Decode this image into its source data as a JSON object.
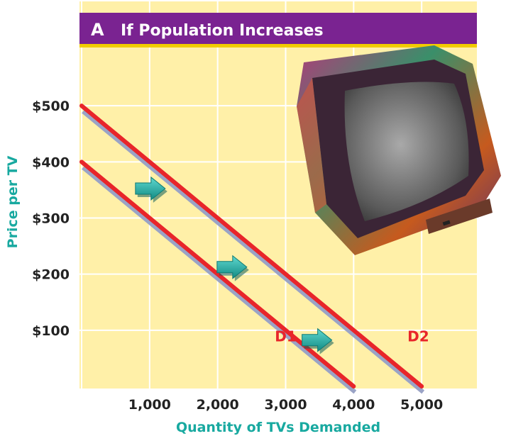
{
  "chart_data": {
    "type": "line",
    "panel_letter": "A",
    "title": "If Population Increases",
    "xlabel": "Quantity of TVs Demanded",
    "ylabel": "Price per TV",
    "xlim": [
      0,
      6000
    ],
    "ylim": [
      0,
      600
    ],
    "x_ticks": [
      {
        "value": 1000,
        "label": "1,000"
      },
      {
        "value": 2000,
        "label": "2,000"
      },
      {
        "value": 3000,
        "label": "3,000"
      },
      {
        "value": 4000,
        "label": "4,000"
      },
      {
        "value": 5000,
        "label": "5,000"
      }
    ],
    "y_ticks": [
      {
        "value": 100,
        "label": "$100"
      },
      {
        "value": 200,
        "label": "$200"
      },
      {
        "value": 300,
        "label": "$300"
      },
      {
        "value": 400,
        "label": "$400"
      },
      {
        "value": 500,
        "label": "$500"
      }
    ],
    "grid": true,
    "series": [
      {
        "name": "D1",
        "points": [
          [
            0,
            400
          ],
          [
            4000,
            0
          ]
        ],
        "label_at": [
          3000,
          80
        ]
      },
      {
        "name": "D2",
        "points": [
          [
            0,
            500
          ],
          [
            5000,
            0
          ]
        ],
        "label_at": [
          4950,
          80
        ]
      }
    ],
    "shift_arrows": [
      {
        "at": [
          1000,
          355
        ]
      },
      {
        "at": [
          2200,
          215
        ]
      },
      {
        "at": [
          3450,
          85
        ]
      }
    ],
    "colors": {
      "background": "#FFF0A8",
      "grid": "#FFFFFF",
      "header": "#7A2391",
      "header_stripe": "#F2CC00",
      "line": "#E8252A",
      "line_shadow": "#9AA3C6",
      "axis_title": "#18A9A0",
      "arrow": "#1FA7A0",
      "tick": "#222222"
    },
    "image": "television-icon"
  }
}
